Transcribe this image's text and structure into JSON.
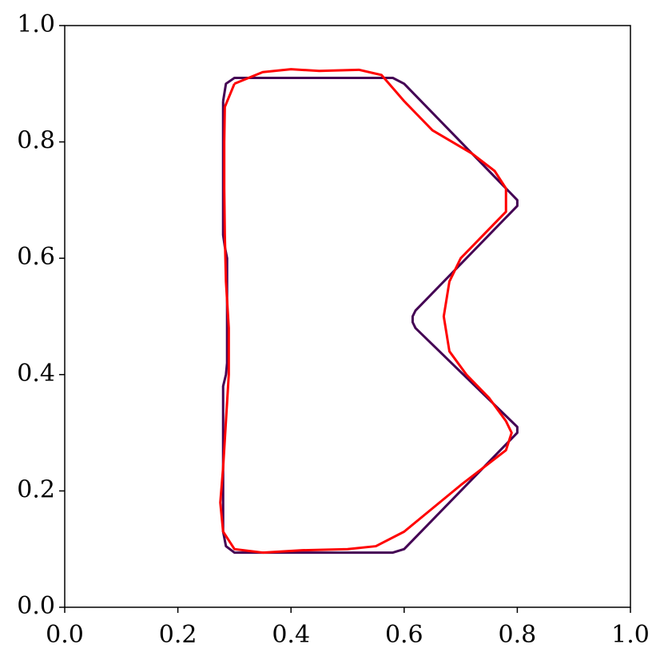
{
  "chart_data": {
    "type": "line",
    "xlim": [
      0,
      1
    ],
    "ylim": [
      0,
      1
    ],
    "xticks": [
      {
        "value": 0,
        "label": "0.0"
      },
      0.2,
      0.4,
      0.6,
      0.8,
      {
        "value": 1,
        "label": "1.0"
      }
    ],
    "yticks": [
      {
        "value": 0,
        "label": "0.0"
      },
      0.2,
      0.4,
      0.6,
      0.8,
      {
        "value": 1,
        "label": "1.0"
      }
    ],
    "series": [
      {
        "color": "#440154",
        "x": [
          0.28,
          0.285,
          0.3,
          0.58,
          0.6,
          0.8,
          0.8,
          0.62,
          0.615,
          0.615,
          0.62,
          0.8,
          0.8,
          0.6,
          0.58,
          0.3,
          0.285,
          0.28,
          0.28,
          0.285,
          0.287,
          0.287,
          0.283,
          0.28,
          0.28
        ],
        "values": [
          0.87,
          0.9,
          0.91,
          0.91,
          0.9,
          0.7,
          0.69,
          0.51,
          0.5,
          0.49,
          0.48,
          0.31,
          0.3,
          0.1,
          0.094,
          0.094,
          0.105,
          0.13,
          0.38,
          0.4,
          0.42,
          0.6,
          0.62,
          0.64,
          0.87
        ]
      },
      {
        "color": "#ff0000",
        "x": [
          0.3,
          0.35,
          0.4,
          0.45,
          0.52,
          0.56,
          0.6,
          0.65,
          0.72,
          0.76,
          0.78,
          0.78,
          0.74,
          0.7,
          0.68,
          0.67,
          0.68,
          0.71,
          0.75,
          0.78,
          0.79,
          0.78,
          0.74,
          0.7,
          0.65,
          0.6,
          0.55,
          0.5,
          0.42,
          0.35,
          0.3,
          0.28,
          0.275,
          0.28,
          0.285,
          0.29,
          0.29,
          0.285,
          0.283,
          0.282,
          0.282,
          0.283,
          0.3
        ],
        "values": [
          0.9,
          0.92,
          0.925,
          0.922,
          0.924,
          0.915,
          0.87,
          0.82,
          0.78,
          0.75,
          0.72,
          0.68,
          0.64,
          0.6,
          0.56,
          0.5,
          0.44,
          0.4,
          0.36,
          0.32,
          0.3,
          0.27,
          0.24,
          0.21,
          0.17,
          0.13,
          0.105,
          0.1,
          0.098,
          0.094,
          0.1,
          0.13,
          0.18,
          0.24,
          0.32,
          0.4,
          0.48,
          0.56,
          0.64,
          0.72,
          0.8,
          0.86,
          0.9
        ]
      }
    ]
  }
}
